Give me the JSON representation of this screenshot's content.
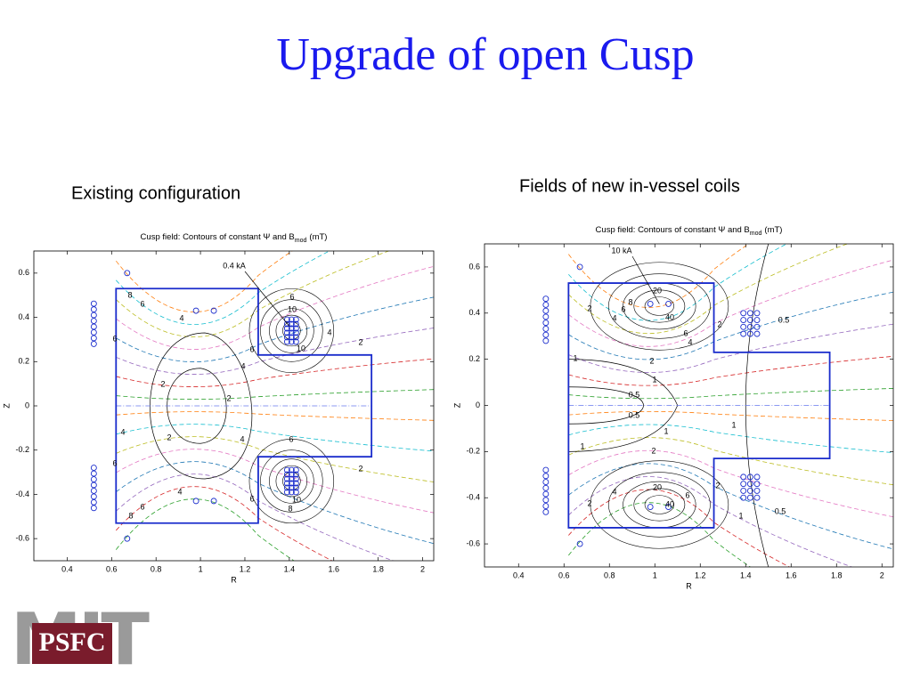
{
  "title": "Upgrade of open Cusp",
  "panels": [
    {
      "caption": "Existing configuration",
      "plot_title": "Cusp field: Contours of constant Ψ and B",
      "plot_title_sub": "mod",
      "plot_title_unit": "(mT)",
      "xlabel": "R",
      "ylabel": "Z",
      "xlim": [
        0.25,
        2.05
      ],
      "ylim": [
        -0.7,
        0.7
      ],
      "xticks": [
        0.4,
        0.6,
        0.8,
        1,
        1.2,
        1.4,
        1.6,
        1.8,
        2
      ],
      "yticks": [
        -0.6,
        -0.4,
        -0.2,
        0,
        0.2,
        0.4,
        0.6
      ],
      "annotation": "0.4 kA",
      "contour_labels": [
        "8",
        "6",
        "4",
        "2",
        "2",
        "2",
        "4",
        "4",
        "6",
        "8",
        "6",
        "10",
        "4",
        "6",
        "10",
        "4",
        "4",
        "6",
        "6",
        "10",
        "8",
        "2",
        "2",
        "6",
        "6"
      ]
    },
    {
      "caption": "Fields of new in-vessel coils",
      "plot_title": "Cusp field: Contours of constant Ψ and B",
      "plot_title_sub": "mod",
      "plot_title_unit": "(mT)",
      "xlabel": "R",
      "ylabel": "Z",
      "xlim": [
        0.25,
        2.05
      ],
      "ylim": [
        -0.7,
        0.7
      ],
      "xticks": [
        0.4,
        0.6,
        0.8,
        1,
        1.2,
        1.4,
        1.6,
        1.8,
        2
      ],
      "yticks": [
        -0.6,
        -0.4,
        -0.2,
        0,
        0.2,
        0.4,
        0.6
      ],
      "annotation": "10 kA",
      "contour_labels": [
        "20",
        "2",
        "4",
        "6",
        "8",
        "6",
        "4",
        "2",
        "1",
        "2",
        "1",
        "0.5",
        "0.5",
        "1",
        "1",
        "2",
        "20",
        "4",
        "2",
        "6",
        "2",
        "1",
        "0.5",
        "0.5",
        "1",
        "40",
        "40"
      ]
    }
  ],
  "logo": {
    "mit": "MIT",
    "psfc": "PSFC"
  }
}
